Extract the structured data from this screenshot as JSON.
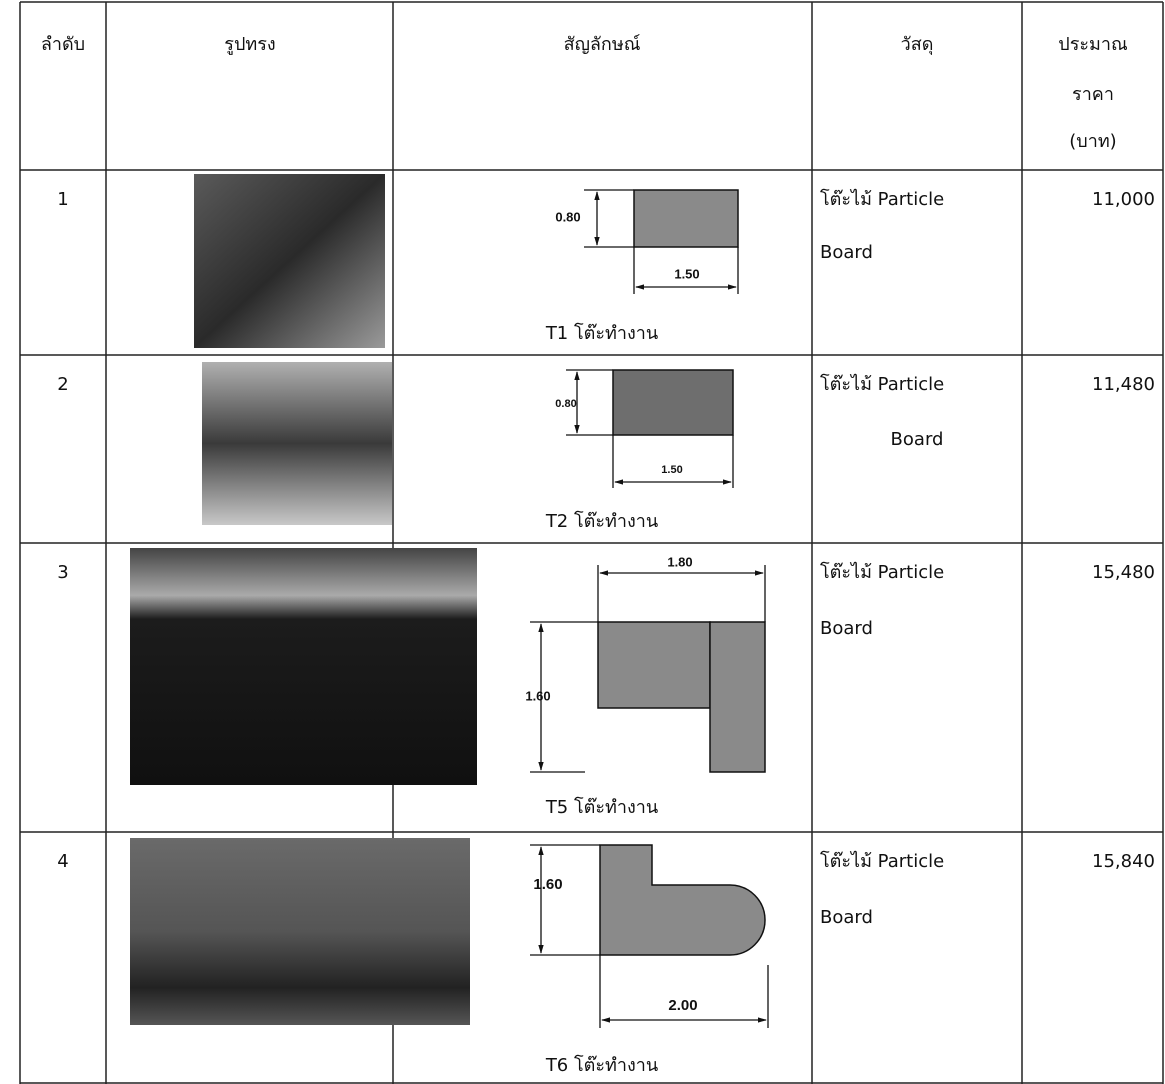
{
  "table": {
    "header": [
      "ลำดับ",
      "รูปทรง",
      "สัญลักษณ์",
      "วัสดุ",
      [
        "ประมาณ",
        "ราคา",
        "(บาท)"
      ]
    ],
    "rows": [
      {
        "no": "1",
        "symbol": {
          "dims": [
            "0.80",
            "1.50"
          ],
          "caption": "T1 โต๊ะทำงาน"
        },
        "material": [
          "โต๊ะไม้ Particle",
          "Board"
        ],
        "price": "11,000"
      },
      {
        "no": "2",
        "symbol": {
          "dims": [
            "0.80",
            "1.50"
          ],
          "caption": "T2 โต๊ะทำงาน"
        },
        "material": [
          "โต๊ะไม้ Particle",
          "Board"
        ],
        "price": "11,480"
      },
      {
        "no": "3",
        "symbol": {
          "dims": [
            "1.80",
            "1.60"
          ],
          "caption": "T5 โต๊ะทำงาน"
        },
        "material": [
          "โต๊ะไม้ Particle",
          "Board"
        ],
        "price": "15,480"
      },
      {
        "no": "4",
        "symbol": {
          "dims": [
            "1.60",
            "2.00"
          ],
          "caption": "T6 โต๊ะทำงาน"
        },
        "material": [
          "โต๊ะไม้ Particle",
          "Board"
        ],
        "price": "15,840"
      }
    ]
  }
}
